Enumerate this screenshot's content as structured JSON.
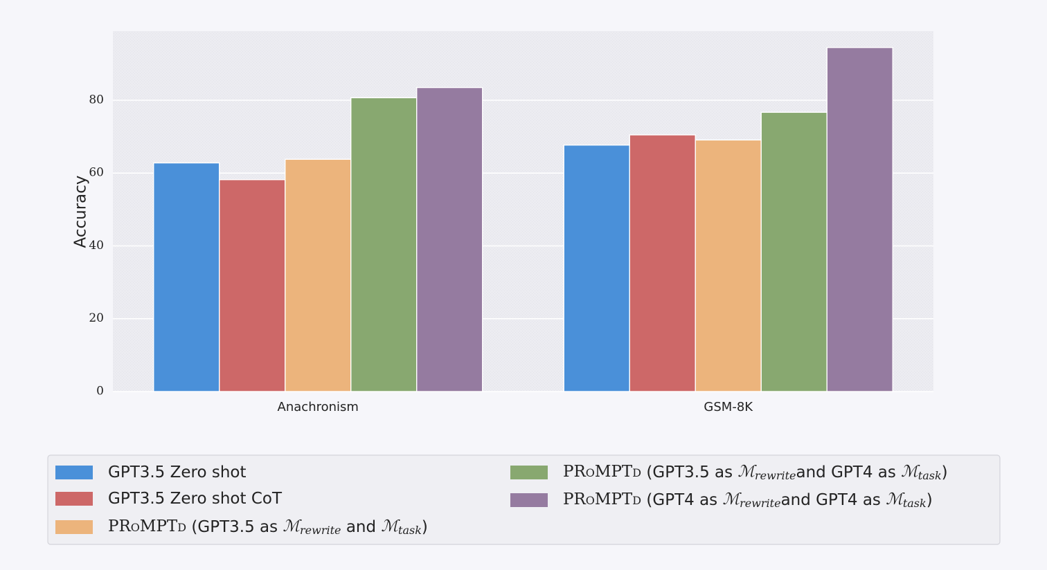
{
  "chart_data": {
    "type": "bar",
    "title": "",
    "xlabel": "",
    "ylabel": "Accuracy",
    "ylim": [
      0,
      99
    ],
    "yticks": [
      0,
      20,
      40,
      60,
      80
    ],
    "grid": true,
    "legend_position": "bottom",
    "categories": [
      "Anachronism",
      "GSM-8K"
    ],
    "series": [
      {
        "name": "GPT3.5 Zero shot",
        "color": "#4a90d9",
        "values": [
          62.8,
          67.7
        ],
        "legend": [
          {
            "t": "GPT3.5 Zero shot"
          }
        ]
      },
      {
        "name": "GPT3.5 Zero shot CoT",
        "color": "#cd6868",
        "values": [
          58.2,
          70.5
        ],
        "legend": [
          {
            "t": "GPT3.5 Zero shot CoT"
          }
        ]
      },
      {
        "name": "PROMPTD (GPT3.5 as Mrewrite and Mtask)",
        "color": "#ecb47c",
        "values": [
          63.8,
          69.1
        ],
        "legend": [
          {
            "t": "PRoMPTd",
            "sc": true
          },
          {
            "t": " (GPT3.5 as "
          },
          {
            "t": "ℳ",
            "math": true
          },
          {
            "t": "rewrite",
            "sub": true
          },
          {
            "t": " and "
          },
          {
            "t": "ℳ",
            "math": true
          },
          {
            "t": "task",
            "sub": true
          },
          {
            "t": ")"
          }
        ]
      },
      {
        "name": "PROMPTD (GPT3.5 as Mrewrite and GPT4 as Mtask)",
        "color": "#88a870",
        "values": [
          80.7,
          76.7
        ],
        "legend": [
          {
            "t": "PRoMPTd",
            "sc": true
          },
          {
            "t": " (GPT3.5 as "
          },
          {
            "t": "ℳ",
            "math": true
          },
          {
            "t": "rewrite",
            "sub": true
          },
          {
            "t": "and GPT4 as "
          },
          {
            "t": "ℳ",
            "math": true
          },
          {
            "t": "task",
            "sub": true
          },
          {
            "t": ")"
          }
        ]
      },
      {
        "name": "PROMPTD (GPT4 as Mrewrite and GPT4 as Mtask)",
        "color": "#957ba0",
        "values": [
          83.5,
          94.5
        ],
        "legend": [
          {
            "t": "PRoMPTd",
            "sc": true
          },
          {
            "t": " (GPT4 as "
          },
          {
            "t": "ℳ",
            "math": true
          },
          {
            "t": "rewrite",
            "sub": true
          },
          {
            "t": "and GPT4 as "
          },
          {
            "t": "ℳ",
            "math": true
          },
          {
            "t": "task",
            "sub": true
          },
          {
            "t": ")"
          }
        ]
      }
    ]
  }
}
